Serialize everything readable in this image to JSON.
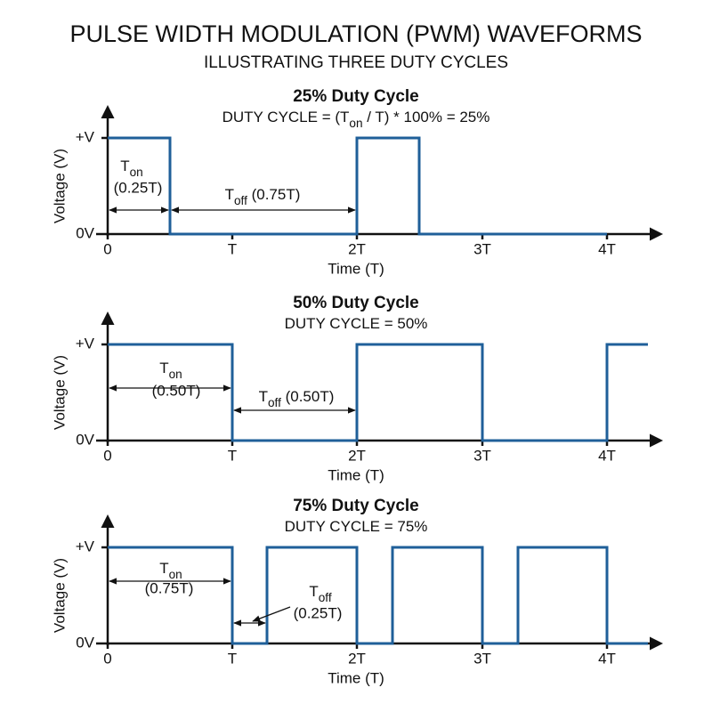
{
  "title": "PULSE WIDTH MODULATION (PWM) WAVEFORMS",
  "subtitle": "ILLUSTRATING THREE DUTY CYCLES",
  "axes": {
    "y_label": "Voltage (V)",
    "x_label": "Time (T)",
    "y_high": "+V",
    "y_low": "0V",
    "x_ticks": [
      "0",
      "T",
      "2T",
      "3T",
      "4T"
    ]
  },
  "panels": [
    {
      "title": "25% Duty Cycle",
      "formula": [
        "DUTY CYCLE = (T",
        "on",
        " / T) * 100% = 25%"
      ],
      "t_on": [
        "T",
        "on",
        "(0.25T)"
      ],
      "t_off": [
        "T",
        "off",
        " (0.75T)"
      ]
    },
    {
      "title": "50% Duty Cycle",
      "formula": [
        "DUTY CYCLE = 50%"
      ],
      "t_on": [
        "T",
        "on",
        "(0.50T)"
      ],
      "t_off": [
        "T",
        "off",
        " (0.50T)"
      ]
    },
    {
      "title": "75% Duty Cycle",
      "formula": [
        "DUTY CYCLE = 75%"
      ],
      "t_on": [
        "T",
        "on",
        "(0.75T)"
      ],
      "t_off": [
        "T",
        "off",
        "(0.25T)"
      ]
    }
  ]
}
